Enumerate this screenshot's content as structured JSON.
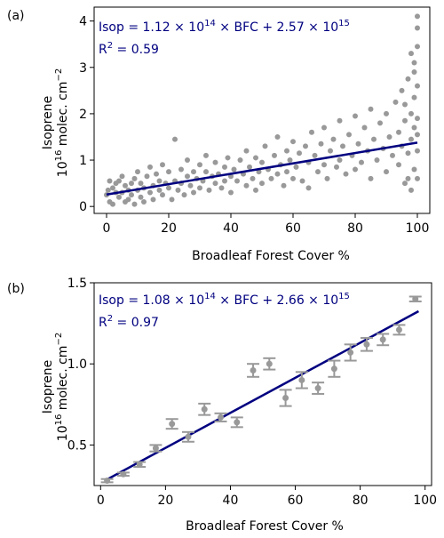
{
  "chart_data": [
    {
      "panel_label": "(a)",
      "type": "scatter",
      "xlabel": "Broadleaf Forest Cover %",
      "ylabel_line1": "Isoprene",
      "ylabel_line2_prefix": "10",
      "ylabel_line2_exp": "16",
      "ylabel_line2_suffix": " molec. cm",
      "ylabel_line2_suffix_exp": "−2",
      "xlim": [
        -4,
        104
      ],
      "ylim": [
        -0.15,
        4.3
      ],
      "xticks": [
        0,
        20,
        40,
        60,
        80,
        100
      ],
      "yticks": [
        0,
        1,
        2,
        3,
        4
      ],
      "equation": {
        "prefix": "Isop = 1.12 × 10",
        "exp1": "14",
        "middle": " × BFC + 2.57 × 10",
        "exp2": "15"
      },
      "r2": {
        "label": "R",
        "exp": "2",
        "value": " = 0.59"
      },
      "fit": {
        "slope": 0.0112,
        "intercept": 0.257
      },
      "point_color": "#999999",
      "line_color": "#000080",
      "scatter_points": [
        [
          0,
          0.25
        ],
        [
          0.5,
          0.35
        ],
        [
          1,
          0.55
        ],
        [
          1,
          0.1
        ],
        [
          2,
          0.4
        ],
        [
          2,
          0.05
        ],
        [
          3,
          0.3
        ],
        [
          3,
          0.5
        ],
        [
          4,
          0.2
        ],
        [
          4,
          0.55
        ],
        [
          5,
          0.3
        ],
        [
          5,
          0.65
        ],
        [
          6,
          0.1
        ],
        [
          6,
          0.45
        ],
        [
          7,
          0.35
        ],
        [
          7,
          0.15
        ],
        [
          8,
          0.5
        ],
        [
          8,
          0.25
        ],
        [
          9,
          0.6
        ],
        [
          9,
          0.05
        ],
        [
          10,
          0.35
        ],
        [
          10,
          0.75
        ],
        [
          11,
          0.2
        ],
        [
          11,
          0.5
        ],
        [
          12,
          0.4
        ],
        [
          12,
          0.1
        ],
        [
          13,
          0.65
        ],
        [
          14,
          0.3
        ],
        [
          14,
          0.85
        ],
        [
          15,
          0.45
        ],
        [
          15,
          0.15
        ],
        [
          16,
          0.7
        ],
        [
          17,
          0.35
        ],
        [
          17,
          0.55
        ],
        [
          18,
          0.25
        ],
        [
          18,
          0.9
        ],
        [
          19,
          0.5
        ],
        [
          20,
          0.4
        ],
        [
          20,
          0.75
        ],
        [
          21,
          0.15
        ],
        [
          22,
          0.55
        ],
        [
          22,
          1.45
        ],
        [
          23,
          0.35
        ],
        [
          24,
          0.8
        ],
        [
          24,
          0.5
        ],
        [
          25,
          0.25
        ],
        [
          26,
          0.65
        ],
        [
          26,
          1.0
        ],
        [
          27,
          0.45
        ],
        [
          28,
          0.75
        ],
        [
          28,
          0.3
        ],
        [
          29,
          0.6
        ],
        [
          30,
          0.9
        ],
        [
          30,
          0.4
        ],
        [
          31,
          0.55
        ],
        [
          32,
          0.75
        ],
        [
          32,
          1.1
        ],
        [
          33,
          0.35
        ],
        [
          34,
          0.65
        ],
        [
          35,
          0.5
        ],
        [
          35,
          0.95
        ],
        [
          36,
          0.7
        ],
        [
          37,
          0.4
        ],
        [
          38,
          0.85
        ],
        [
          38,
          0.55
        ],
        [
          39,
          1.05
        ],
        [
          40,
          0.65
        ],
        [
          40,
          0.3
        ],
        [
          41,
          0.8
        ],
        [
          42,
          0.55
        ],
        [
          43,
          1.0
        ],
        [
          44,
          0.7
        ],
        [
          45,
          0.45
        ],
        [
          45,
          1.2
        ],
        [
          46,
          0.85
        ],
        [
          47,
          0.6
        ],
        [
          48,
          1.05
        ],
        [
          48,
          0.35
        ],
        [
          49,
          0.75
        ],
        [
          50,
          0.95
        ],
        [
          50,
          0.5
        ],
        [
          51,
          1.3
        ],
        [
          52,
          0.8
        ],
        [
          53,
          0.6
        ],
        [
          54,
          1.1
        ],
        [
          55,
          0.7
        ],
        [
          55,
          1.5
        ],
        [
          56,
          0.9
        ],
        [
          57,
          0.45
        ],
        [
          58,
          1.2
        ],
        [
          58,
          0.75
        ],
        [
          59,
          1.0
        ],
        [
          60,
          0.6
        ],
        [
          60,
          1.4
        ],
        [
          61,
          0.85
        ],
        [
          62,
          1.15
        ],
        [
          63,
          0.55
        ],
        [
          64,
          1.3
        ],
        [
          65,
          0.95
        ],
        [
          65,
          0.4
        ],
        [
          66,
          1.6
        ],
        [
          67,
          1.1
        ],
        [
          68,
          0.75
        ],
        [
          69,
          1.35
        ],
        [
          70,
          0.9
        ],
        [
          70,
          1.7
        ],
        [
          71,
          0.6
        ],
        [
          72,
          1.2
        ],
        [
          73,
          1.45
        ],
        [
          74,
          0.85
        ],
        [
          75,
          1.0
        ],
        [
          75,
          1.85
        ],
        [
          76,
          1.3
        ],
        [
          77,
          0.7
        ],
        [
          78,
          1.55
        ],
        [
          79,
          1.1
        ],
        [
          80,
          0.8
        ],
        [
          80,
          1.95
        ],
        [
          81,
          1.35
        ],
        [
          82,
          0.95
        ],
        [
          83,
          1.7
        ],
        [
          84,
          1.2
        ],
        [
          85,
          0.6
        ],
        [
          85,
          2.1
        ],
        [
          86,
          1.45
        ],
        [
          87,
          1.0
        ],
        [
          88,
          1.8
        ],
        [
          89,
          1.25
        ],
        [
          90,
          0.75
        ],
        [
          90,
          2.0
        ],
        [
          91,
          1.5
        ],
        [
          92,
          1.1
        ],
        [
          93,
          2.25
        ],
        [
          94,
          0.9
        ],
        [
          94,
          1.6
        ],
        [
          95,
          1.3
        ],
        [
          95,
          2.5
        ],
        [
          96,
          0.5
        ],
        [
          96,
          1.85
        ],
        [
          97,
          1.15
        ],
        [
          97,
          2.75
        ],
        [
          98,
          0.35
        ],
        [
          98,
          1.45
        ],
        [
          98,
          2.0
        ],
        [
          99,
          0.8
        ],
        [
          99,
          1.7
        ],
        [
          99,
          2.35
        ],
        [
          99,
          3.1
        ],
        [
          100,
          1.2
        ],
        [
          100,
          1.9
        ],
        [
          100,
          2.6
        ],
        [
          100,
          3.45
        ],
        [
          100,
          3.85
        ],
        [
          100,
          4.1
        ],
        [
          100,
          0.6
        ],
        [
          100,
          1.55
        ],
        [
          99,
          2.9
        ],
        [
          98,
          3.3
        ],
        [
          97,
          0.6
        ],
        [
          96,
          2.2
        ]
      ]
    },
    {
      "panel_label": "(b)",
      "type": "scatter",
      "xlabel": "Broadleaf Forest Cover %",
      "ylabel_line1": "Isoprene",
      "ylabel_line2_prefix": "10",
      "ylabel_line2_exp": "16",
      "ylabel_line2_suffix": " molec. cm",
      "ylabel_line2_suffix_exp": "−2",
      "xlim": [
        -2,
        102
      ],
      "ylim": [
        0.25,
        1.5
      ],
      "xticks": [
        0,
        20,
        40,
        60,
        80,
        100
      ],
      "yticks": [
        0.5,
        1.0,
        1.5
      ],
      "ytick_labels": [
        "0.5",
        "1.0",
        "1.5"
      ],
      "equation": {
        "prefix": "Isop = 1.08 × 10",
        "exp1": "14",
        "middle": " × BFC + 2.66 × 10",
        "exp2": "15"
      },
      "r2": {
        "label": "R",
        "exp": "2",
        "value": " = 0.97"
      },
      "fit": {
        "slope": 0.0108,
        "intercept": 0.266
      },
      "point_color": "#999999",
      "line_color": "#000080",
      "points": [
        {
          "x": 2,
          "y": 0.28,
          "err": 0.01
        },
        {
          "x": 7,
          "y": 0.32,
          "err": 0.01
        },
        {
          "x": 12,
          "y": 0.38,
          "err": 0.015
        },
        {
          "x": 17,
          "y": 0.48,
          "err": 0.02
        },
        {
          "x": 22,
          "y": 0.63,
          "err": 0.03
        },
        {
          "x": 27,
          "y": 0.55,
          "err": 0.03
        },
        {
          "x": 32,
          "y": 0.72,
          "err": 0.035
        },
        {
          "x": 37,
          "y": 0.67,
          "err": 0.025
        },
        {
          "x": 42,
          "y": 0.64,
          "err": 0.03
        },
        {
          "x": 47,
          "y": 0.96,
          "err": 0.04
        },
        {
          "x": 52,
          "y": 1.0,
          "err": 0.035
        },
        {
          "x": 57,
          "y": 0.79,
          "err": 0.05
        },
        {
          "x": 62,
          "y": 0.9,
          "err": 0.05
        },
        {
          "x": 67,
          "y": 0.85,
          "err": 0.035
        },
        {
          "x": 72,
          "y": 0.97,
          "err": 0.05
        },
        {
          "x": 77,
          "y": 1.07,
          "err": 0.05
        },
        {
          "x": 82,
          "y": 1.12,
          "err": 0.04
        },
        {
          "x": 87,
          "y": 1.15,
          "err": 0.035
        },
        {
          "x": 92,
          "y": 1.21,
          "err": 0.03
        },
        {
          "x": 97,
          "y": 1.4,
          "err": 0.015
        }
      ]
    }
  ]
}
